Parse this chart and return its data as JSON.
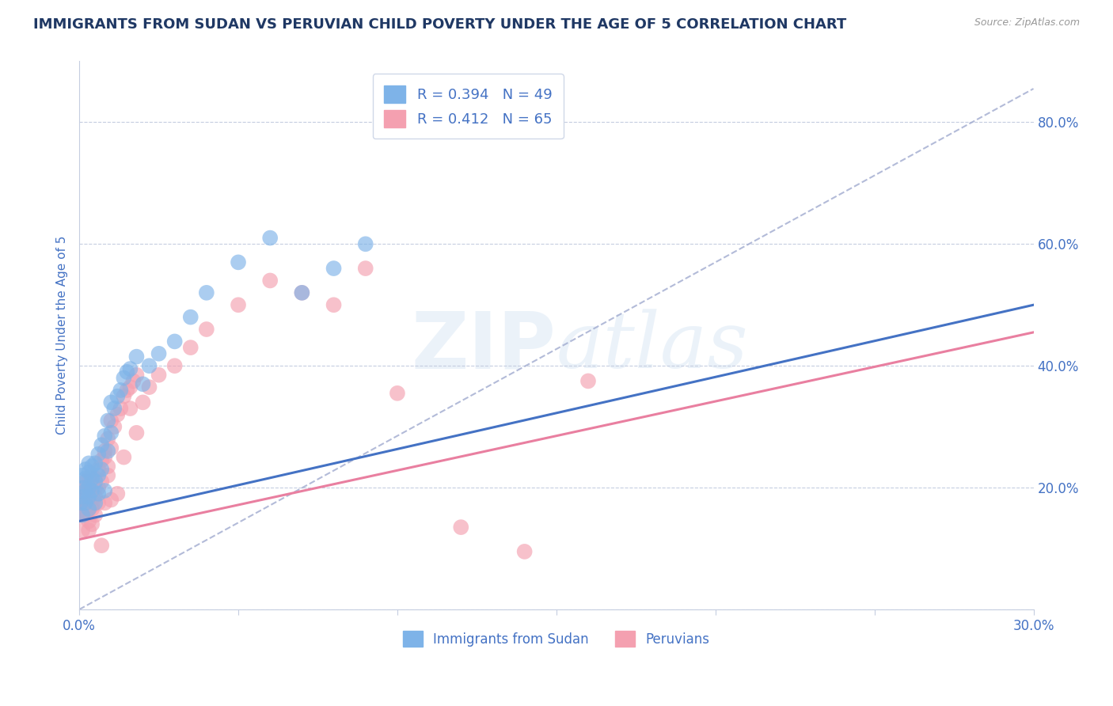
{
  "title": "IMMIGRANTS FROM SUDAN VS PERUVIAN CHILD POVERTY UNDER THE AGE OF 5 CORRELATION CHART",
  "source": "Source: ZipAtlas.com",
  "ylabel": "Child Poverty Under the Age of 5",
  "xlim": [
    0.0,
    0.3
  ],
  "ylim": [
    0.0,
    0.9
  ],
  "xtick_positions": [
    0.0,
    0.05,
    0.1,
    0.15,
    0.2,
    0.25,
    0.3
  ],
  "xticklabels_ends": [
    "0.0%",
    "30.0%"
  ],
  "yticks": [
    0.0,
    0.2,
    0.4,
    0.6,
    0.8
  ],
  "yticklabels": [
    "",
    "20.0%",
    "40.0%",
    "60.0%",
    "80.0%"
  ],
  "sudan_color": "#7EB3E8",
  "peru_color": "#F4A0B0",
  "sudan_line_color": "#4472C4",
  "peru_line_color": "#E97FA0",
  "ref_line_color": "#A0AACF",
  "legend_sudan_label": "R = 0.394   N = 49",
  "legend_peru_label": "R = 0.412   N = 65",
  "legend_bottom_sudan": "Immigrants from Sudan",
  "legend_bottom_peru": "Peruvians",
  "title_color": "#1F3864",
  "axis_color": "#4472C4",
  "sudan_line_y0": 0.145,
  "sudan_line_y1": 0.5,
  "peru_line_y0": 0.115,
  "peru_line_y1": 0.455,
  "ref_line_y0": 0.0,
  "ref_line_y1": 0.855,
  "sudan_scatter_x": [
    0.0005,
    0.001,
    0.001,
    0.001,
    0.0015,
    0.002,
    0.002,
    0.002,
    0.002,
    0.003,
    0.003,
    0.003,
    0.003,
    0.003,
    0.004,
    0.004,
    0.004,
    0.005,
    0.005,
    0.005,
    0.006,
    0.006,
    0.006,
    0.007,
    0.007,
    0.008,
    0.008,
    0.009,
    0.009,
    0.01,
    0.01,
    0.011,
    0.012,
    0.013,
    0.014,
    0.015,
    0.016,
    0.018,
    0.02,
    0.022,
    0.025,
    0.03,
    0.035,
    0.04,
    0.05,
    0.06,
    0.07,
    0.08,
    0.09
  ],
  "sudan_scatter_y": [
    0.175,
    0.155,
    0.185,
    0.22,
    0.2,
    0.175,
    0.215,
    0.23,
    0.195,
    0.165,
    0.2,
    0.225,
    0.24,
    0.185,
    0.215,
    0.195,
    0.235,
    0.21,
    0.24,
    0.175,
    0.22,
    0.255,
    0.19,
    0.27,
    0.23,
    0.285,
    0.195,
    0.26,
    0.31,
    0.29,
    0.34,
    0.33,
    0.35,
    0.36,
    0.38,
    0.39,
    0.395,
    0.415,
    0.37,
    0.4,
    0.42,
    0.44,
    0.48,
    0.52,
    0.57,
    0.61,
    0.52,
    0.56,
    0.6
  ],
  "peru_scatter_x": [
    0.0005,
    0.001,
    0.001,
    0.001,
    0.0015,
    0.002,
    0.002,
    0.002,
    0.002,
    0.003,
    0.003,
    0.003,
    0.003,
    0.004,
    0.004,
    0.004,
    0.005,
    0.005,
    0.005,
    0.006,
    0.006,
    0.007,
    0.007,
    0.008,
    0.008,
    0.009,
    0.009,
    0.01,
    0.01,
    0.011,
    0.012,
    0.013,
    0.014,
    0.015,
    0.016,
    0.017,
    0.018,
    0.02,
    0.022,
    0.025,
    0.03,
    0.035,
    0.04,
    0.05,
    0.06,
    0.07,
    0.08,
    0.09,
    0.1,
    0.12,
    0.14,
    0.16,
    0.003,
    0.003,
    0.004,
    0.005,
    0.006,
    0.007,
    0.008,
    0.009,
    0.01,
    0.012,
    0.014,
    0.016,
    0.018
  ],
  "peru_scatter_y": [
    0.155,
    0.13,
    0.16,
    0.2,
    0.18,
    0.155,
    0.19,
    0.21,
    0.17,
    0.145,
    0.175,
    0.2,
    0.215,
    0.165,
    0.19,
    0.17,
    0.185,
    0.215,
    0.155,
    0.2,
    0.23,
    0.245,
    0.21,
    0.26,
    0.175,
    0.235,
    0.28,
    0.265,
    0.31,
    0.3,
    0.32,
    0.33,
    0.35,
    0.36,
    0.365,
    0.375,
    0.385,
    0.34,
    0.365,
    0.385,
    0.4,
    0.43,
    0.46,
    0.5,
    0.54,
    0.52,
    0.5,
    0.56,
    0.355,
    0.135,
    0.095,
    0.375,
    0.13,
    0.165,
    0.14,
    0.2,
    0.175,
    0.105,
    0.25,
    0.22,
    0.18,
    0.19,
    0.25,
    0.33,
    0.29
  ]
}
